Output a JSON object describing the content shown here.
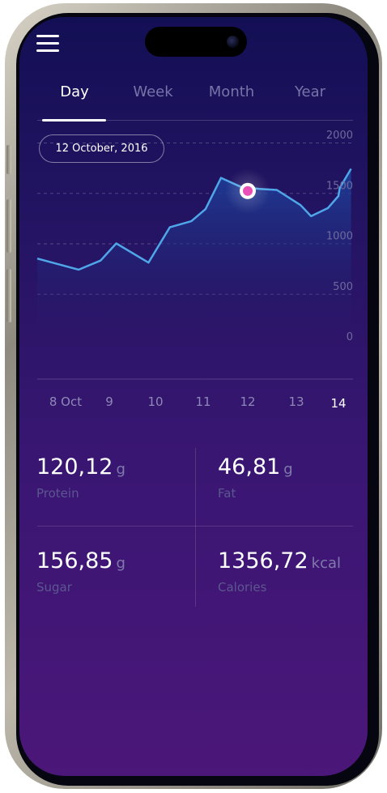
{
  "header": {
    "menu_icon": "hamburger-menu-icon"
  },
  "tabs": [
    {
      "label": "Day",
      "active": true
    },
    {
      "label": "Week",
      "active": false
    },
    {
      "label": "Month",
      "active": false
    },
    {
      "label": "Year",
      "active": false
    }
  ],
  "date_selector": {
    "label": "12 October, 2016"
  },
  "chart_data": {
    "type": "area",
    "y_ticks": [
      "2000",
      "1500",
      "1000",
      "500",
      "0"
    ],
    "ylim": [
      0,
      2000
    ],
    "x_ticks": [
      "8 Oct",
      "9",
      "10",
      "11",
      "12",
      "13",
      "14"
    ],
    "selected_x_tick": "14",
    "points": [
      {
        "x": 8.0,
        "y": 850
      },
      {
        "x": 8.3,
        "y": 740
      },
      {
        "x": 8.8,
        "y": 830
      },
      {
        "x": 9.15,
        "y": 1000
      },
      {
        "x": 9.85,
        "y": 810
      },
      {
        "x": 10.3,
        "y": 1160
      },
      {
        "x": 10.75,
        "y": 1220
      },
      {
        "x": 11.05,
        "y": 1340
      },
      {
        "x": 11.4,
        "y": 1650
      },
      {
        "x": 11.85,
        "y": 1560
      },
      {
        "x": 12.25,
        "y": 1540
      },
      {
        "x": 12.6,
        "y": 1530
      },
      {
        "x": 13.1,
        "y": 1380
      },
      {
        "x": 13.35,
        "y": 1270
      },
      {
        "x": 13.75,
        "y": 1350
      },
      {
        "x": 14.0,
        "y": 1470
      },
      {
        "x": 14.05,
        "y": 1550
      },
      {
        "x": 14.5,
        "y": 1740
      }
    ],
    "highlight": {
      "x": 12.0,
      "y": 1520
    },
    "grid": "dashed",
    "colors": {
      "line": "#4fa6e8",
      "area_top": "#1d3f9a",
      "marker": "#ea4fb7",
      "marker_line": "#b85ac8"
    }
  },
  "stats": [
    {
      "value": "120,12",
      "unit": "g",
      "label": "Protein"
    },
    {
      "value": "46,81",
      "unit": "g",
      "label": "Fat"
    },
    {
      "value": "156,85",
      "unit": "g",
      "label": "Sugar"
    },
    {
      "value": "1356,72",
      "unit": "kcal",
      "label": "Calories"
    }
  ]
}
